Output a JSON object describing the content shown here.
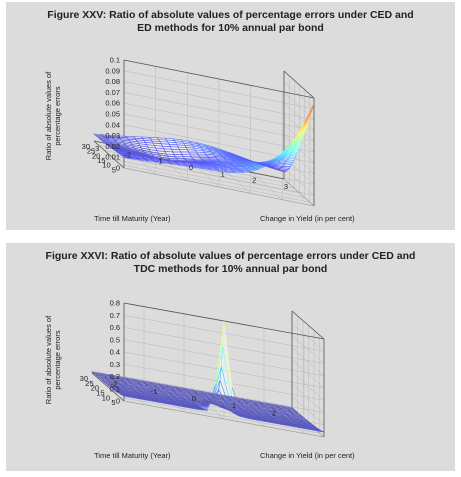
{
  "colors": {
    "panel_bg": "#dcdcdc",
    "axis": "#444444",
    "grid": "#b0b0b0"
  },
  "chart_data": [
    {
      "type": "surface3d",
      "title": "Figure XXV: Ratio of absolute values of percentage errors under CED and ED methods for 10% annual par bond",
      "title_lines": [
        "Figure XXV: Ratio of absolute values of percentage errors under CED and",
        "ED methods for 10% annual par bond"
      ],
      "xlabel": "Change in Yield (in per cent)",
      "ylabel": "Time till Maturity (Year)",
      "zlabel_lines": [
        "Ratio of absolute values of",
        "percentage errors"
      ],
      "xticks": [
        "-3",
        "-2",
        "-1",
        "0",
        "1",
        "2",
        "3"
      ],
      "yticks": [
        "5",
        "10",
        "15",
        "20",
        "25",
        "30"
      ],
      "zticks": [
        "0",
        "0.01",
        "0.02",
        "0.03",
        "0.04",
        "0.05",
        "0.06",
        "0.07",
        "0.08",
        "0.09",
        "0.1"
      ],
      "xlim": [
        -3,
        3
      ],
      "ylim": [
        1,
        30
      ],
      "zlim": [
        0,
        0.1
      ],
      "grid": true,
      "surface_shape": "low saddle near 0.01–0.02 at small changes, rising to about 0.09 at +3% yield change and short maturity"
    },
    {
      "type": "surface3d",
      "title": "Figure XXVI: Ratio of absolute values of percentage errors under CED and TDC methods for 10% annual par bond",
      "title_lines": [
        "Figure XXVI: Ratio of absolute values of percentage errors under CED and",
        "TDC methods for 10% annual par bond"
      ],
      "xlabel": "Change in Yield (in per cent)",
      "ylabel": "Time till Maturity (Year)",
      "zlabel_lines": [
        "Ratio of absolute values of",
        "percentage errors"
      ],
      "xticks": [
        "-2",
        "-1",
        "0",
        "1",
        "2"
      ],
      "yticks": [
        "5",
        "10",
        "15",
        "20",
        "25",
        "30"
      ],
      "zticks": [
        "0",
        "0.1",
        "0.2",
        "0.3",
        "0.4",
        "0.5",
        "0.6",
        "0.7",
        "0.8"
      ],
      "xlim": [
        -2.5,
        2.5
      ],
      "ylim": [
        1,
        30
      ],
      "zlim": [
        0,
        0.8
      ],
      "grid": true,
      "surface_shape": "near zero except a sharp spike up to about 0.8 at zero yield change and short maturity, decaying quickly with maturity"
    }
  ]
}
